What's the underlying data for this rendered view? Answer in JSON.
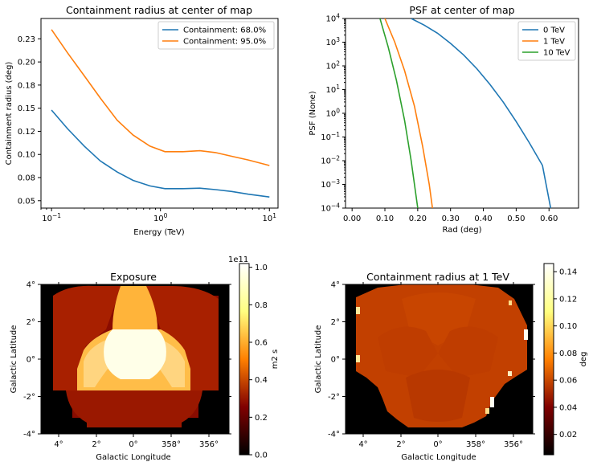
{
  "colors": {
    "blue": "#1f77b4",
    "orange": "#ff7f0e",
    "green": "#2ca02c"
  },
  "chart_data": [
    {
      "type": "line",
      "title": "Containment radius at center of map",
      "xlabel": "Energy (TeV)",
      "ylabel": "Containment radius (deg)",
      "xscale": "log",
      "xlim": [
        0.08,
        12
      ],
      "ylim": [
        0.042,
        0.247
      ],
      "xticks": [
        {
          "v": 0.1,
          "base": "10",
          "exp": "−1"
        },
        {
          "v": 1,
          "base": "10",
          "exp": "0"
        },
        {
          "v": 10,
          "base": "10",
          "exp": "1"
        }
      ],
      "yticks": [
        0.05,
        0.075,
        0.1,
        0.125,
        0.15,
        0.175,
        0.2,
        0.225
      ],
      "ytick_labels": [
        "0.05",
        "0.08",
        "0.10",
        "0.12",
        "0.15",
        "0.18",
        "0.20",
        "0.23"
      ],
      "legend_position": "top-right",
      "x": [
        0.1,
        0.14,
        0.2,
        0.28,
        0.4,
        0.56,
        0.8,
        1.1,
        1.6,
        2.3,
        3.2,
        4.5,
        6.4,
        10
      ],
      "series": [
        {
          "name": "Containment: 68.0%",
          "color": "#1f77b4",
          "values": [
            0.148,
            0.128,
            0.109,
            0.093,
            0.081,
            0.072,
            0.066,
            0.063,
            0.063,
            0.0635,
            0.062,
            0.06,
            0.057,
            0.054
          ]
        },
        {
          "name": "Containment: 95.0%",
          "color": "#ff7f0e",
          "values": [
            0.235,
            0.21,
            0.185,
            0.161,
            0.137,
            0.121,
            0.109,
            0.103,
            0.103,
            0.104,
            0.102,
            0.098,
            0.094,
            0.088
          ]
        }
      ]
    },
    {
      "type": "line",
      "title": "PSF at center of map",
      "xlabel": "Rad (deg)",
      "ylabel": "PSF (None)",
      "yscale": "log",
      "xlim": [
        -0.02,
        0.69
      ],
      "ylim_exp": [
        -4,
        4
      ],
      "xticks": [
        0,
        0.1,
        0.2,
        0.3,
        0.4,
        0.5,
        0.6
      ],
      "xtick_labels": [
        "0.00",
        "0.10",
        "0.20",
        "0.30",
        "0.40",
        "0.50",
        "0.60"
      ],
      "yticks_exp": [
        "−4",
        "−3",
        "−2",
        "−1",
        "0",
        "1",
        "2",
        "3",
        "4"
      ],
      "legend_position": "top-right",
      "series": [
        {
          "name": "0 TeV",
          "color": "#1f77b4",
          "x": [
            0.18,
            0.22,
            0.26,
            0.3,
            0.34,
            0.38,
            0.42,
            0.46,
            0.5,
            0.54,
            0.58,
            0.605
          ],
          "log10": [
            4.0,
            3.72,
            3.38,
            2.95,
            2.46,
            1.88,
            1.22,
            0.48,
            -0.35,
            -1.24,
            -2.2,
            -4.0
          ]
        },
        {
          "name": "1 TeV",
          "color": "#ff7f0e",
          "x": [
            0.1,
            0.13,
            0.16,
            0.19,
            0.215,
            0.235,
            0.245
          ],
          "log10": [
            4.0,
            3.0,
            1.8,
            0.3,
            -1.4,
            -3.0,
            -4.0
          ]
        },
        {
          "name": "10 TeV",
          "color": "#2ca02c",
          "x": [
            0.085,
            0.11,
            0.135,
            0.16,
            0.18,
            0.2
          ],
          "log10": [
            4.0,
            2.8,
            1.4,
            -0.3,
            -2.0,
            -4.0
          ]
        }
      ]
    },
    {
      "type": "heatmap",
      "title": "Exposure",
      "xlabel": "Galactic Longitude",
      "ylabel": "Galactic Latitude",
      "xtick_labels": [
        "4°",
        "2°",
        "0°",
        "358°",
        "356°"
      ],
      "ytick_labels": [
        "4°",
        "2°",
        "0°",
        "-2°",
        "-4°"
      ],
      "colorbar": {
        "label": "m2 s",
        "multiplier": "1e11",
        "ticks": [
          "0.0",
          "0.2",
          "0.4",
          "0.6",
          "0.8",
          "1.0"
        ],
        "range": [
          0,
          1.02
        ]
      }
    },
    {
      "type": "heatmap",
      "title": "Containment radius at 1 TeV",
      "xlabel": "Galactic Longitude",
      "ylabel": "Galactic Latitude",
      "xtick_labels": [
        "4°",
        "2°",
        "0°",
        "358°",
        "356°"
      ],
      "ytick_labels": [
        "4°",
        "2°",
        "0°",
        "-2°",
        "-4°"
      ],
      "colorbar": {
        "label": "deg",
        "ticks": [
          "0.02",
          "0.04",
          "0.06",
          "0.08",
          "0.10",
          "0.12",
          "0.14"
        ],
        "tick_values": [
          0.02,
          0.04,
          0.06,
          0.08,
          0.1,
          0.12,
          0.14
        ],
        "range": [
          0.005,
          0.146
        ]
      }
    }
  ]
}
